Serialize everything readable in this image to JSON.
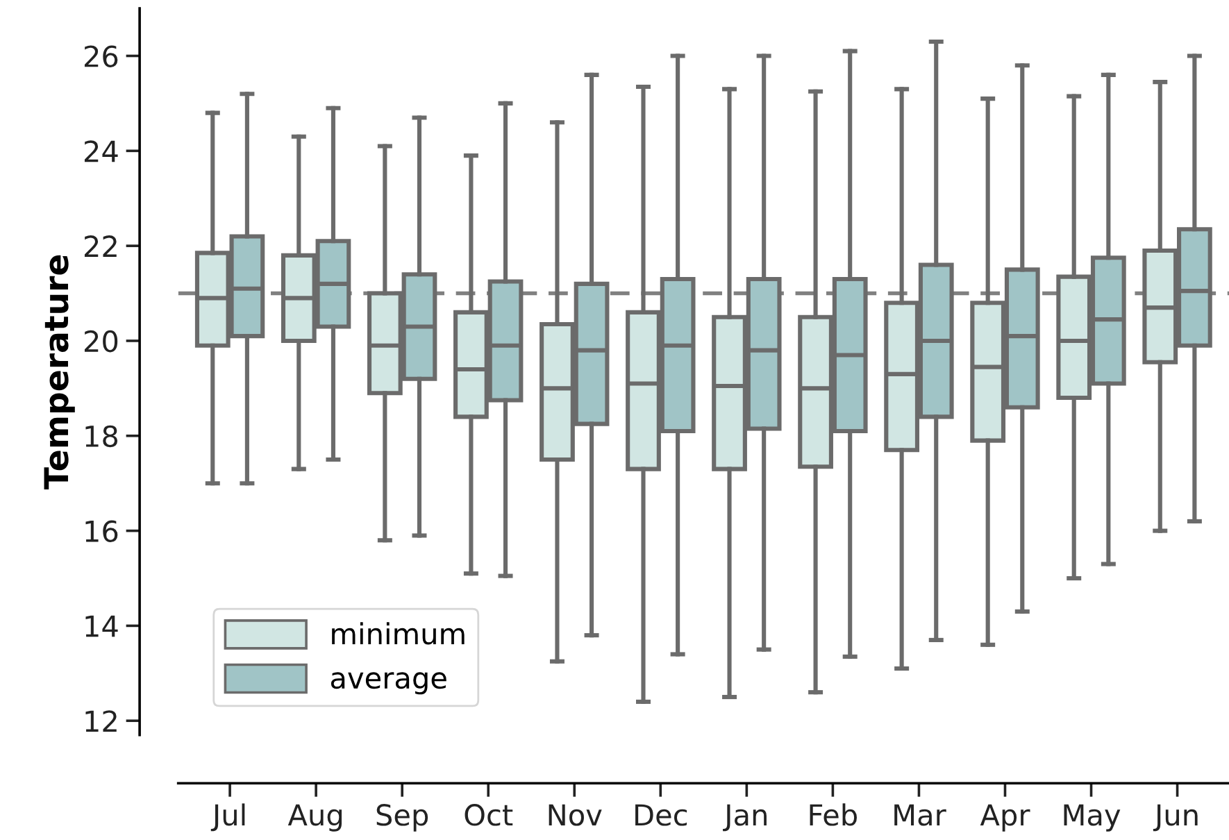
{
  "chart_data": {
    "type": "box",
    "ylabel": "Temperature",
    "categories": [
      "Jul",
      "Aug",
      "Sep",
      "Oct",
      "Nov",
      "Dec",
      "Jan",
      "Feb",
      "Mar",
      "Apr",
      "May",
      "Jun"
    ],
    "ylim": [
      11.7,
      27.0
    ],
    "yticks": [
      12,
      14,
      16,
      18,
      20,
      22,
      24,
      26
    ],
    "grid": false,
    "legend": "bottom left",
    "ref_lines": [
      {
        "axis": "y",
        "value": 21,
        "color": "#808080",
        "line_style": "dashed"
      }
    ],
    "series": [
      {
        "name": "minimum",
        "color": "#d1e6e3",
        "boxes": [
          {
            "low": 17.0,
            "q1": 19.9,
            "median": 20.9,
            "q3": 21.85,
            "high": 24.8
          },
          {
            "low": 17.3,
            "q1": 20.0,
            "median": 20.9,
            "q3": 21.8,
            "high": 24.3
          },
          {
            "low": 15.8,
            "q1": 18.9,
            "median": 19.9,
            "q3": 21.0,
            "high": 24.1
          },
          {
            "low": 15.1,
            "q1": 18.4,
            "median": 19.4,
            "q3": 20.6,
            "high": 23.9
          },
          {
            "low": 13.25,
            "q1": 17.5,
            "median": 19.0,
            "q3": 20.35,
            "high": 24.6
          },
          {
            "low": 12.4,
            "q1": 17.3,
            "median": 19.1,
            "q3": 20.6,
            "high": 25.35
          },
          {
            "low": 12.5,
            "q1": 17.3,
            "median": 19.05,
            "q3": 20.5,
            "high": 25.3
          },
          {
            "low": 12.6,
            "q1": 17.35,
            "median": 19.0,
            "q3": 20.5,
            "high": 25.25
          },
          {
            "low": 13.1,
            "q1": 17.7,
            "median": 19.3,
            "q3": 20.8,
            "high": 25.3
          },
          {
            "low": 13.6,
            "q1": 17.9,
            "median": 19.45,
            "q3": 20.8,
            "high": 25.1
          },
          {
            "low": 15.0,
            "q1": 18.8,
            "median": 20.0,
            "q3": 21.35,
            "high": 25.15
          },
          {
            "low": 16.0,
            "q1": 19.55,
            "median": 20.7,
            "q3": 21.9,
            "high": 25.45
          }
        ]
      },
      {
        "name": "average",
        "color": "#a0c4c6",
        "boxes": [
          {
            "low": 17.0,
            "q1": 20.1,
            "median": 21.1,
            "q3": 22.2,
            "high": 25.2
          },
          {
            "low": 17.5,
            "q1": 20.3,
            "median": 21.2,
            "q3": 22.1,
            "high": 24.9
          },
          {
            "low": 15.9,
            "q1": 19.2,
            "median": 20.3,
            "q3": 21.4,
            "high": 24.7
          },
          {
            "low": 15.05,
            "q1": 18.75,
            "median": 19.9,
            "q3": 21.25,
            "high": 25.0
          },
          {
            "low": 13.8,
            "q1": 18.25,
            "median": 19.8,
            "q3": 21.2,
            "high": 25.6
          },
          {
            "low": 13.4,
            "q1": 18.1,
            "median": 19.9,
            "q3": 21.3,
            "high": 26.0
          },
          {
            "low": 13.5,
            "q1": 18.15,
            "median": 19.8,
            "q3": 21.3,
            "high": 26.0
          },
          {
            "low": 13.35,
            "q1": 18.1,
            "median": 19.7,
            "q3": 21.3,
            "high": 26.1
          },
          {
            "low": 13.7,
            "q1": 18.4,
            "median": 20.0,
            "q3": 21.6,
            "high": 26.3
          },
          {
            "low": 14.3,
            "q1": 18.6,
            "median": 20.1,
            "q3": 21.5,
            "high": 25.8
          },
          {
            "low": 15.3,
            "q1": 19.1,
            "median": 20.45,
            "q3": 21.75,
            "high": 25.6
          },
          {
            "low": 16.2,
            "q1": 19.9,
            "median": 21.05,
            "q3": 22.35,
            "high": 26.0
          }
        ]
      }
    ]
  }
}
